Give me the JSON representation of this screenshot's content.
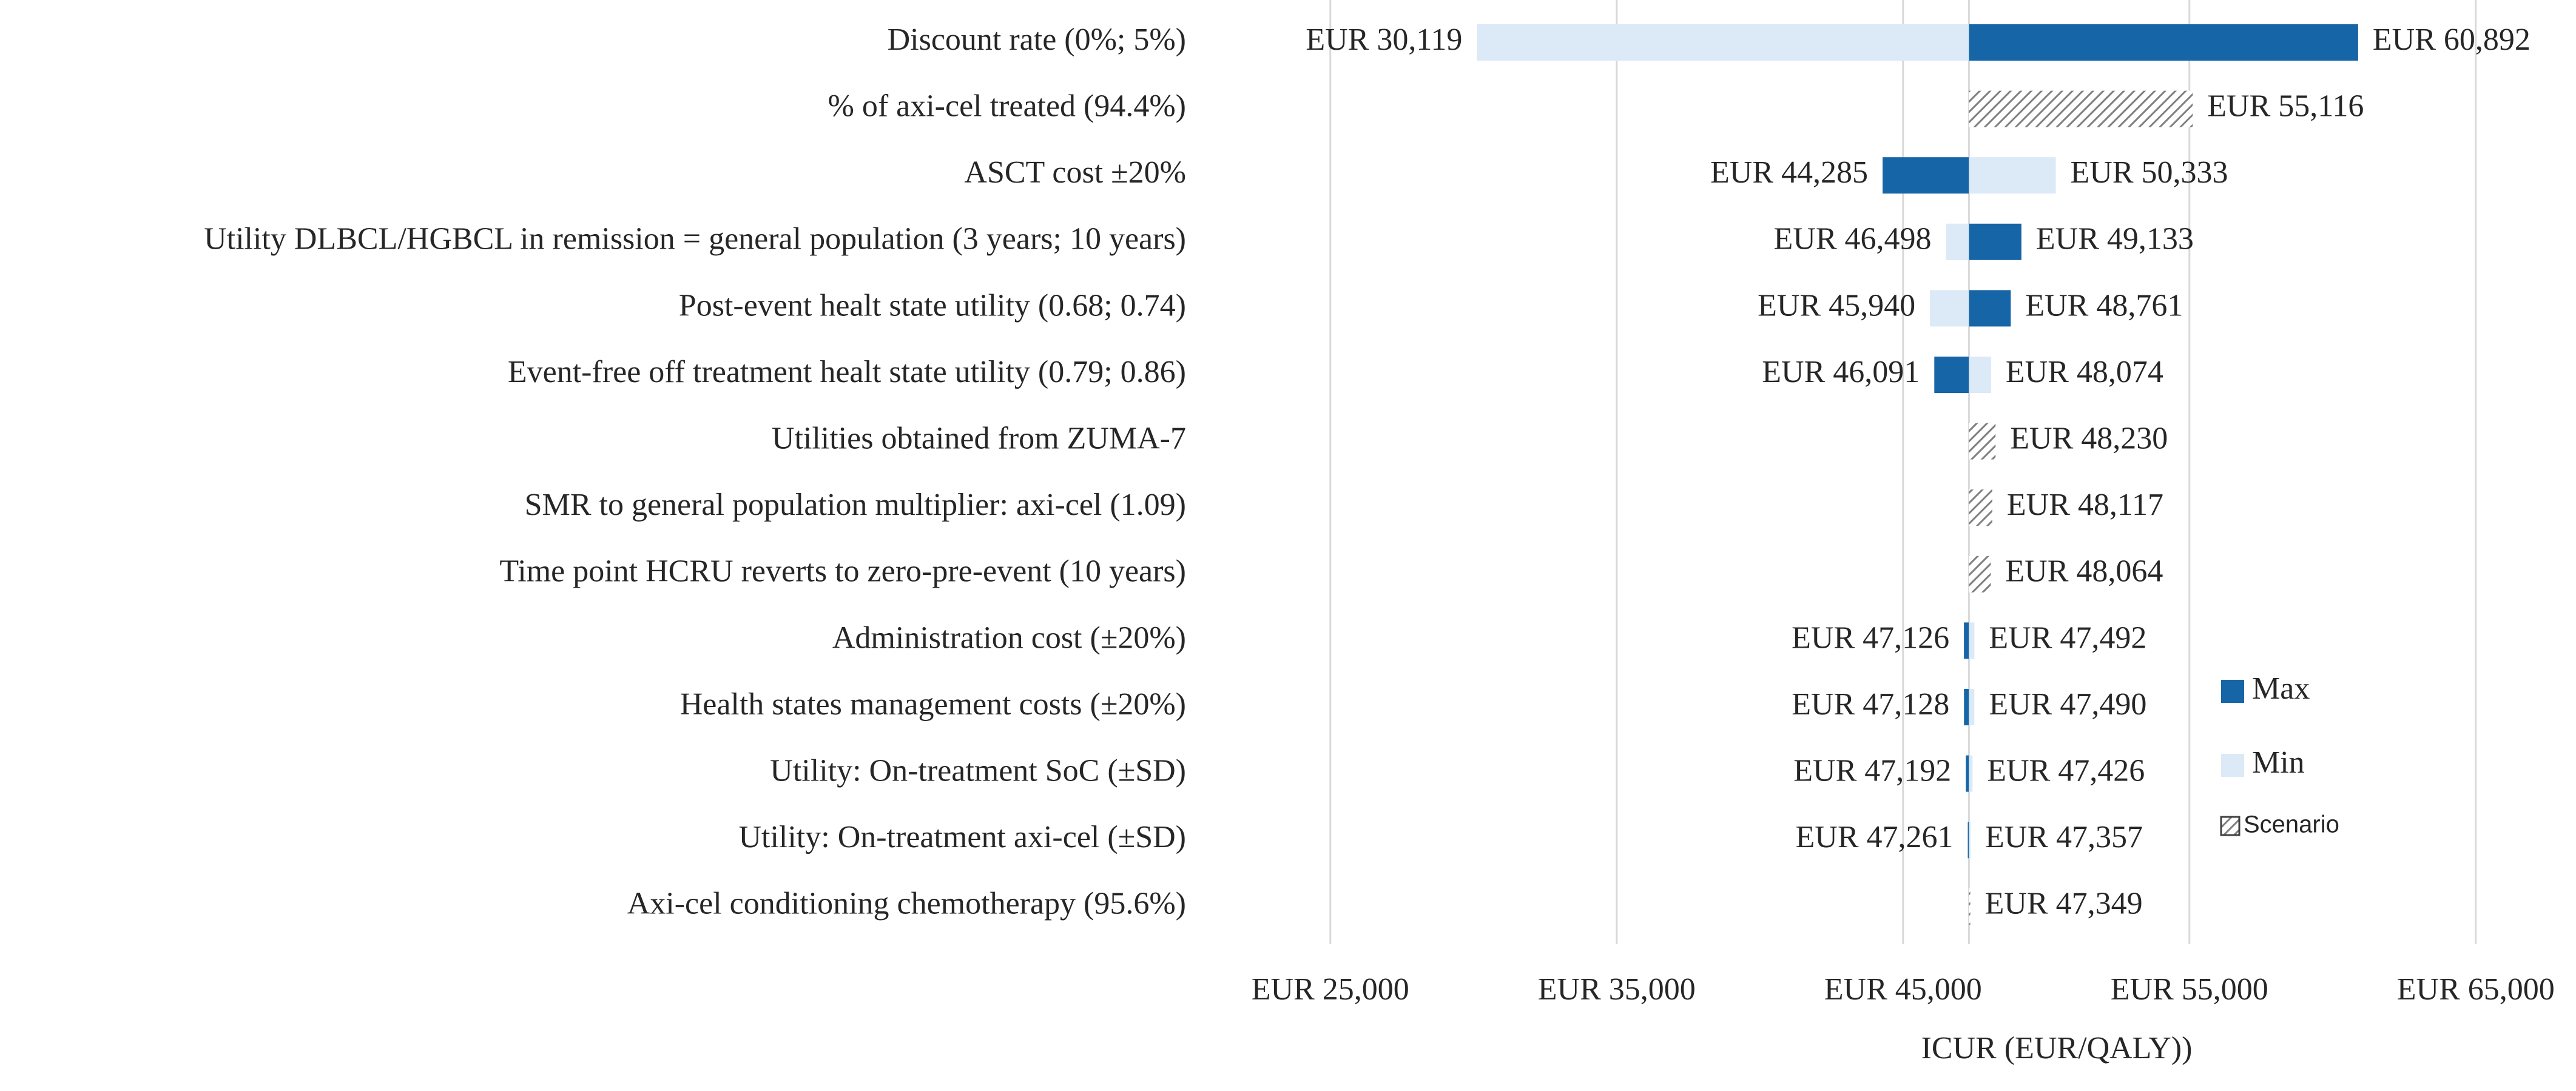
{
  "chart_data": {
    "type": "tornado",
    "xlabel": "ICUR (EUR/QALY))",
    "categories": [
      "Discount rate (0%; 5%)",
      "% of axi-cel treated (94.4%)",
      "ASCT cost ±20%",
      "Utility DLBCL/HGBCL in remission = general population (3 years; 10 years)",
      "Post-event healt state utility (0.68; 0.74)",
      "Event-free off treatment healt state utility (0.79; 0.86)",
      "Utilities obtained from ZUMA-7",
      "SMR to general population multiplier: axi-cel (1.09)",
      "Time point HCRU reverts to zero-pre-event (10 years)",
      "Administration cost (±20%)",
      "Health states management costs (±20%)",
      "Utility: On-treatment SoC (±SD)",
      "Utility: On-treatment axi-cel (±SD)",
      "Axi-cel conditioning chemotherapy (95.6%)"
    ],
    "base": 47300,
    "series": [
      {
        "name": "Max",
        "color": "#1565a7",
        "values": [
          60892,
          null,
          44285,
          49133,
          48761,
          46091,
          null,
          null,
          null,
          47126,
          47128,
          47192,
          47261,
          null
        ],
        "value_labels": [
          "EUR 60,892",
          null,
          "EUR 44,285",
          "EUR 49,133",
          "EUR 48,761",
          "EUR 46,091",
          null,
          null,
          null,
          "EUR 47,126",
          "EUR 47,128",
          "EUR 47,192",
          "EUR 47,261",
          null
        ]
      },
      {
        "name": "Min",
        "color": "#dce9f6",
        "values": [
          30119,
          null,
          50333,
          46498,
          45940,
          48074,
          null,
          null,
          null,
          47492,
          47490,
          47426,
          47357,
          null
        ],
        "value_labels": [
          "EUR 30,119",
          null,
          "EUR 50,333",
          "EUR 46,498",
          "EUR 45,940",
          "EUR 48,074",
          null,
          null,
          null,
          "EUR 47,492",
          "EUR 47,490",
          "EUR 47,426",
          "EUR 47,357",
          null
        ]
      },
      {
        "name": "Scenario",
        "color": "#7f7f7f",
        "pattern": "hatch",
        "values": [
          null,
          55116,
          null,
          null,
          null,
          null,
          48230,
          48117,
          48064,
          null,
          null,
          null,
          null,
          47349
        ],
        "value_labels": [
          null,
          "EUR 55,116",
          null,
          null,
          null,
          null,
          "EUR 48,230",
          "EUR 48,117",
          "EUR 48,064",
          null,
          null,
          null,
          null,
          "EUR 47,349"
        ]
      }
    ],
    "xlim": [
      21000,
      68500
    ],
    "xticks": [
      {
        "value": 25000,
        "label": "EUR 25,000"
      },
      {
        "value": 35000,
        "label": "EUR 35,000"
      },
      {
        "value": 45000,
        "label": "EUR 45,000"
      },
      {
        "value": 55000,
        "label": "EUR 55,000"
      },
      {
        "value": 65000,
        "label": "EUR 65,000"
      }
    ],
    "grid": true,
    "legend": "right"
  }
}
